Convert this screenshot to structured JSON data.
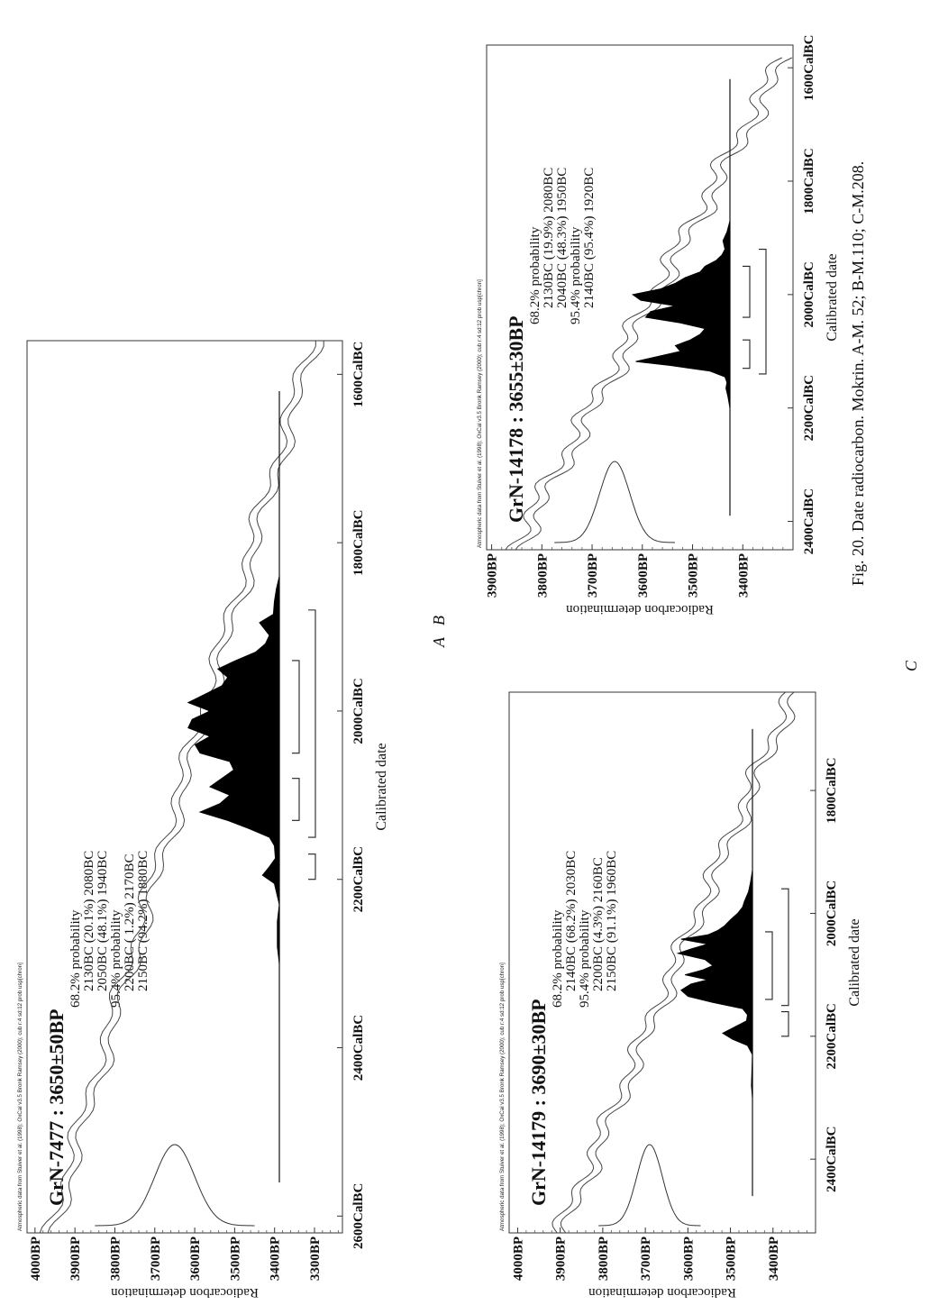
{
  "figure": {
    "caption": "Fig. 20.  Date radiocarbon. Mokrin. A-M. 52; B-M.110; C-M.208.",
    "label_A": "A",
    "label_B": "B",
    "label_C": "C"
  },
  "chart_data": [
    {
      "panel": "A",
      "type": "area",
      "header": "Atmospheric data from Stuiver et al. (1998); OxCal v3.5 Bronk Ramsey (2000); cub r:4 sd:12 prob usp[chron]",
      "title": "GrN-7477 : 3650±50BP",
      "ylabel": "Radiocarbon determination",
      "xlabel": "Calibrated date",
      "y_ticks": [
        "4000BP",
        "3900BP",
        "3800BP",
        "3700BP",
        "3600BP",
        "3500BP",
        "3400BP",
        "3300BP"
      ],
      "y_tick_values": [
        4000,
        3900,
        3800,
        3700,
        3600,
        3500,
        3400,
        3300
      ],
      "x_ticks": [
        "2600CalBC",
        "2400CalBC",
        "2200CalBC",
        "2000CalBC",
        "1800CalBC",
        "1600CalBC"
      ],
      "x_tick_values": [
        2600,
        2400,
        2200,
        2000,
        1800,
        1600
      ],
      "xlim": [
        2620,
        1560
      ],
      "ylim": [
        4020,
        3230
      ],
      "probability_lines": [
        "68.2% probability",
        "2130BC (20.1%) 2080BC",
        "2050BC (48.1%) 1940BC",
        "95.4% probability",
        "2200BC ( 1.2%) 2170BC",
        "2150BC (94.2%) 1880BC"
      ],
      "radiocarbon_gaussian": {
        "mean": 3650,
        "sigma": 50
      },
      "posterior": [
        [
          2300,
          0.0
        ],
        [
          2280,
          0.02
        ],
        [
          2250,
          0.02
        ],
        [
          2230,
          0.0
        ],
        [
          2205,
          0.05
        ],
        [
          2195,
          0.17
        ],
        [
          2185,
          0.1
        ],
        [
          2175,
          0.04
        ],
        [
          2160,
          0.05
        ],
        [
          2150,
          0.1
        ],
        [
          2140,
          0.3
        ],
        [
          2130,
          0.52
        ],
        [
          2120,
          0.8
        ],
        [
          2110,
          0.6
        ],
        [
          2100,
          0.5
        ],
        [
          2090,
          0.7
        ],
        [
          2080,
          0.58
        ],
        [
          2070,
          0.46
        ],
        [
          2060,
          0.5
        ],
        [
          2050,
          0.8
        ],
        [
          2040,
          0.85
        ],
        [
          2030,
          0.7
        ],
        [
          2020,
          0.92
        ],
        [
          2010,
          0.88
        ],
        [
          2000,
          0.7
        ],
        [
          1990,
          0.92
        ],
        [
          1980,
          0.75
        ],
        [
          1970,
          0.58
        ],
        [
          1960,
          0.52
        ],
        [
          1950,
          0.62
        ],
        [
          1940,
          0.44
        ],
        [
          1930,
          0.24
        ],
        [
          1920,
          0.14
        ],
        [
          1910,
          0.1
        ],
        [
          1895,
          0.2
        ],
        [
          1885,
          0.06
        ],
        [
          1870,
          0.05
        ],
        [
          1855,
          0.03
        ],
        [
          1840,
          0.0
        ]
      ],
      "ranges_68": [
        [
          2130,
          2080
        ],
        [
          2050,
          1940
        ]
      ],
      "ranges_95": [
        [
          2200,
          2170
        ],
        [
          2150,
          1880
        ]
      ]
    },
    {
      "panel": "B",
      "type": "area",
      "header": "Atmospheric data from Stuiver et al. (1998); OxCal v3.5 Bronk Ramsey (2000); cub r:4 sd:12 prob usp[chron]",
      "title": "GrN-14178 : 3655±30BP",
      "ylabel": "Radiocarbon determination",
      "xlabel": "Calibrated date",
      "y_ticks": [
        "3900BP",
        "3800BP",
        "3700BP",
        "3600BP",
        "3500BP",
        "3400BP"
      ],
      "y_tick_values": [
        3900,
        3800,
        3700,
        3600,
        3500,
        3400
      ],
      "x_ticks": [
        "2400CalBC",
        "2200CalBC",
        "2000CalBC",
        "1800CalBC",
        "1600CalBC"
      ],
      "x_tick_values": [
        2400,
        2200,
        2000,
        1800,
        1600
      ],
      "xlim": [
        2450,
        1560
      ],
      "ylim": [
        3910,
        3300
      ],
      "probability_lines": [
        "68.2% probability",
        "2130BC (19.9%) 2080BC",
        "2040BC (48.3%) 1950BC",
        "95.4% probability",
        "2140BC (95.4%) 1920BC"
      ],
      "radiocarbon_gaussian": {
        "mean": 3655,
        "sigma": 30
      },
      "posterior": [
        [
          2200,
          0.0
        ],
        [
          2180,
          0.02
        ],
        [
          2165,
          0.04
        ],
        [
          2155,
          0.03
        ],
        [
          2145,
          0.05
        ],
        [
          2135,
          0.2
        ],
        [
          2125,
          0.6
        ],
        [
          2118,
          0.95
        ],
        [
          2110,
          0.75
        ],
        [
          2100,
          0.5
        ],
        [
          2090,
          0.55
        ],
        [
          2080,
          0.4
        ],
        [
          2070,
          0.3
        ],
        [
          2060,
          0.25
        ],
        [
          2050,
          0.5
        ],
        [
          2040,
          0.85
        ],
        [
          2030,
          0.8
        ],
        [
          2020,
          0.55
        ],
        [
          2010,
          0.9
        ],
        [
          2000,
          0.98
        ],
        [
          1990,
          0.7
        ],
        [
          1980,
          0.55
        ],
        [
          1970,
          0.45
        ],
        [
          1960,
          0.3
        ],
        [
          1950,
          0.25
        ],
        [
          1940,
          0.14
        ],
        [
          1930,
          0.08
        ],
        [
          1920,
          0.05
        ],
        [
          1905,
          0.07
        ],
        [
          1890,
          0.03
        ],
        [
          1870,
          0.0
        ]
      ],
      "ranges_68": [
        [
          2130,
          2080
        ],
        [
          2040,
          1950
        ]
      ],
      "ranges_95": [
        [
          2140,
          1920
        ]
      ]
    },
    {
      "panel": "C",
      "type": "area",
      "header": "Atmospheric data from Stuiver et al. (1998); OxCal v3.5 Bronk Ramsey (2000); cub r:4 sd:12 prob usp[chron]",
      "title": "GrN-14179 : 3690±30BP",
      "ylabel": "Radiocarbon determination",
      "xlabel": "Calibrated date",
      "y_ticks": [
        "4000BP",
        "3900BP",
        "3800BP",
        "3700BP",
        "3600BP",
        "3500BP",
        "3400BP"
      ],
      "y_tick_values": [
        4000,
        3900,
        3800,
        3700,
        3600,
        3500,
        3400
      ],
      "x_ticks": [
        "2400CalBC",
        "2200CalBC",
        "2000CalBC",
        "1800CalBC"
      ],
      "x_tick_values": [
        2400,
        2200,
        2000,
        1800
      ],
      "xlim": [
        2520,
        1640
      ],
      "ylim": [
        4020,
        3300
      ],
      "probability_lines": [
        "68.2% probability",
        "2140BC (68.2%) 2030BC",
        "95.4% probability",
        "2200BC (4.3%) 2160BC",
        "2150BC (91.1%) 1960BC"
      ],
      "radiocarbon_gaussian": {
        "mean": 3690,
        "sigma": 30
      },
      "posterior": [
        [
          2300,
          0.0
        ],
        [
          2280,
          0.01
        ],
        [
          2230,
          0.0
        ],
        [
          2215,
          0.05
        ],
        [
          2205,
          0.2
        ],
        [
          2195,
          0.3
        ],
        [
          2185,
          0.18
        ],
        [
          2175,
          0.06
        ],
        [
          2165,
          0.05
        ],
        [
          2155,
          0.1
        ],
        [
          2145,
          0.4
        ],
        [
          2135,
          0.65
        ],
        [
          2125,
          0.72
        ],
        [
          2115,
          0.62
        ],
        [
          2108,
          0.45
        ],
        [
          2100,
          0.68
        ],
        [
          2092,
          0.5
        ],
        [
          2085,
          0.4
        ],
        [
          2075,
          0.48
        ],
        [
          2065,
          0.75
        ],
        [
          2058,
          0.62
        ],
        [
          2050,
          0.45
        ],
        [
          2042,
          0.72
        ],
        [
          2035,
          0.45
        ],
        [
          2028,
          0.35
        ],
        [
          2020,
          0.28
        ],
        [
          2010,
          0.22
        ],
        [
          2000,
          0.15
        ],
        [
          1990,
          0.1
        ],
        [
          1980,
          0.08
        ],
        [
          1965,
          0.04
        ],
        [
          1950,
          0.02
        ],
        [
          1930,
          0.0
        ]
      ],
      "ranges_68": [
        [
          2140,
          2030
        ]
      ],
      "ranges_95": [
        [
          2200,
          2160
        ],
        [
          2150,
          1960
        ]
      ]
    }
  ]
}
